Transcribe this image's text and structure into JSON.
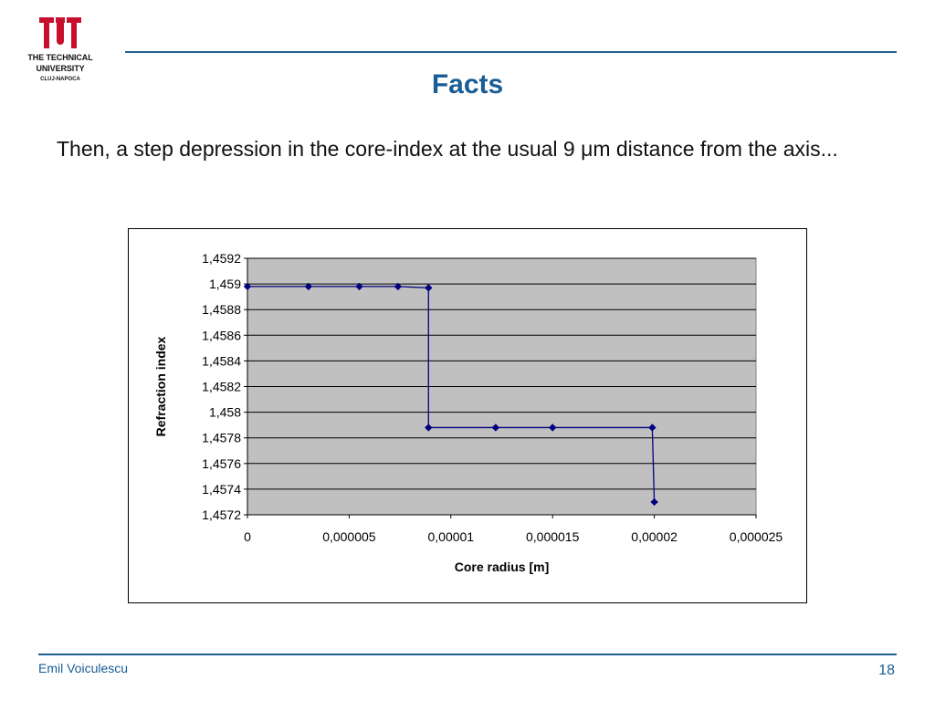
{
  "logo": {
    "line1": "THE TECHNICAL",
    "line2": "UNIVERSITY",
    "line3": "CLUJ-NAPOCA",
    "color": "#c8102e"
  },
  "slide": {
    "title": "Facts",
    "body": "Then, a step depression in the core-index at the usual 9 μm distance from the axis..."
  },
  "chart_data": {
    "type": "line",
    "title": "",
    "xlabel": "Core radius [m]",
    "ylabel": "Refraction index",
    "xlim": [
      0,
      2.5e-05
    ],
    "ylim": [
      1.4572,
      1.4592
    ],
    "x_ticks": [
      "0",
      "0,000005",
      "0,00001",
      "0,000015",
      "0,00002",
      "0,000025"
    ],
    "y_ticks": [
      "1,4572",
      "1,4574",
      "1,4576",
      "1,4578",
      "1,458",
      "1,4582",
      "1,4584",
      "1,4586",
      "1,4588",
      "1,459",
      "1,4592"
    ],
    "grid": true,
    "legend": "none",
    "plot_background": "#c0c0c0",
    "series_color": "#000080",
    "series": [
      {
        "x": [
          0,
          3e-06,
          5.5e-06,
          7.4e-06,
          8.9e-06,
          8.9e-06,
          1.22e-05,
          1.5e-05,
          1.99e-05,
          2e-05
        ],
        "y": [
          1.45898,
          1.45898,
          1.45898,
          1.45898,
          1.45897,
          1.45788,
          1.45788,
          1.45788,
          1.45788,
          1.4573
        ],
        "markers": [
          true,
          true,
          true,
          true,
          true,
          true,
          true,
          true,
          true,
          true
        ]
      }
    ]
  },
  "footer": {
    "author": "Emil Voiculescu",
    "page": "18"
  }
}
